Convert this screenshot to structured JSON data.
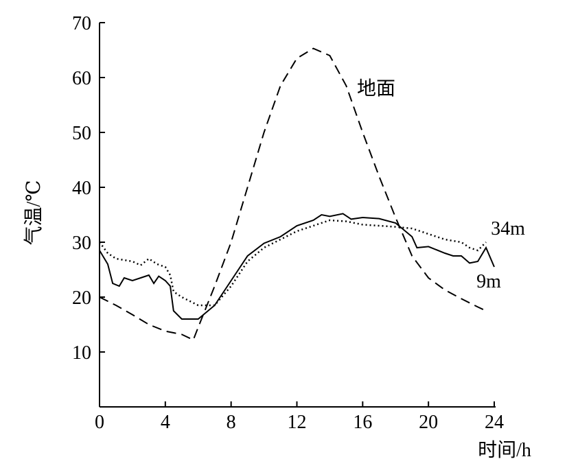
{
  "chart_data": {
    "type": "line",
    "x_label": "时间/h",
    "y_label": "气温/℃",
    "xlim": [
      0,
      24
    ],
    "xticks": [
      0,
      4,
      8,
      12,
      16,
      20,
      24
    ],
    "ylim": [
      0,
      70
    ],
    "yticks": [
      10,
      20,
      30,
      40,
      50,
      60,
      70
    ],
    "series": [
      {
        "name": "地面",
        "color": "#000000",
        "style": "dashed",
        "x": [
          0,
          1,
          2,
          3,
          4,
          5,
          5.7,
          6,
          7,
          8,
          9,
          10,
          11,
          12,
          13,
          14,
          15,
          16,
          17,
          18,
          19,
          20,
          21,
          22,
          23,
          23.5
        ],
        "values": [
          20,
          18.5,
          16.8,
          15,
          13.8,
          13.2,
          12.2,
          14.5,
          22,
          30,
          40,
          50,
          58.5,
          63.5,
          65.3,
          64,
          58.5,
          50,
          42,
          34.5,
          27.5,
          23.5,
          21.3,
          19.7,
          18.2,
          17.5
        ]
      },
      {
        "name": "34m",
        "color": "#000000",
        "style": "dotted",
        "x": [
          0,
          0.5,
          1,
          2,
          2.5,
          3,
          3.5,
          4,
          4.3,
          4.5,
          5,
          6,
          7,
          8,
          9,
          10,
          11,
          12,
          13,
          14,
          15,
          16,
          17,
          18,
          19,
          20,
          21,
          22,
          22.5,
          23,
          23.5
        ],
        "values": [
          30,
          28,
          27,
          26.5,
          25.8,
          27,
          26,
          25.5,
          24,
          21,
          20,
          18.5,
          18.5,
          22,
          26.5,
          29,
          30.5,
          32,
          33,
          34,
          33.8,
          33.2,
          33,
          32.8,
          32.5,
          31.5,
          30.5,
          30,
          29,
          28.5,
          30
        ]
      },
      {
        "name": "9m",
        "color": "#000000",
        "style": "solid",
        "x": [
          0,
          0.5,
          0.8,
          1.2,
          1.5,
          2,
          2.5,
          3,
          3.3,
          3.6,
          4,
          4.3,
          4.5,
          5,
          6,
          7,
          8,
          9,
          10,
          11,
          12,
          13,
          13.5,
          14,
          14.8,
          15.3,
          16,
          17,
          18,
          19,
          19.3,
          20,
          21,
          21.5,
          22,
          22.5,
          23,
          23.5,
          24
        ],
        "values": [
          28.5,
          26,
          22.5,
          22,
          23.5,
          23,
          23.5,
          24,
          22.5,
          23.8,
          23,
          22,
          17.5,
          16,
          16,
          18.5,
          23,
          27.5,
          29.8,
          31,
          33,
          34,
          35,
          34.7,
          35.2,
          34.2,
          34.5,
          34.3,
          33.5,
          31,
          29,
          29.2,
          28,
          27.5,
          27.5,
          26.2,
          26.5,
          29,
          25.5
        ]
      }
    ]
  }
}
